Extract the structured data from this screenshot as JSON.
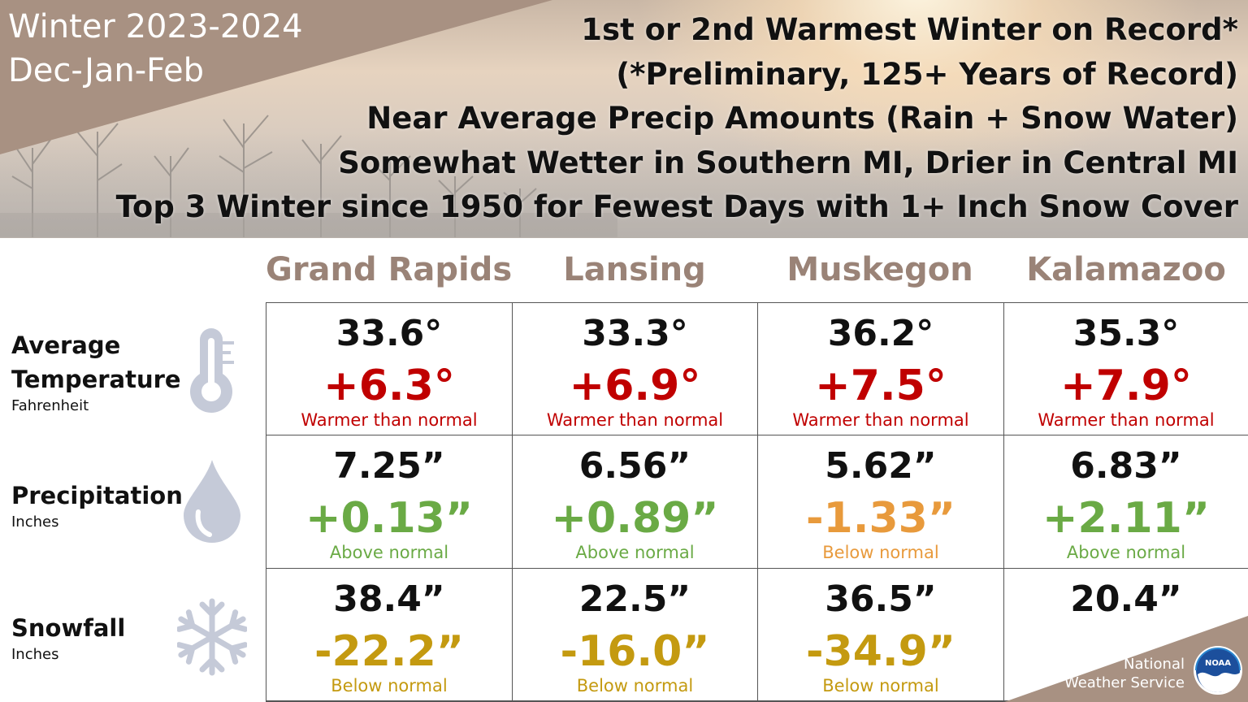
{
  "banner": {
    "season_title": "Winter 2023-2024",
    "season_months": "Dec-Jan-Feb",
    "headlines": [
      "1st or 2nd Warmest Winter on Record*",
      "(*Preliminary, 125+ Years of Record)",
      "Near Average Precip Amounts (Rain + Snow Water)",
      "Somewhat Wetter in Southern MI, Drier in Central MI",
      "Top 3 Winter since 1950 for Fewest Days with 1+ Inch Snow Cover"
    ]
  },
  "columns": [
    "Grand Rapids",
    "Lansing",
    "Muskegon",
    "Kalamazoo"
  ],
  "rows": [
    {
      "label": "Average",
      "label2": "Temperature",
      "unit": "Fahrenheit",
      "icon": "thermometer-icon",
      "cells": [
        {
          "value": "33.6°",
          "departure": "+6.3°",
          "note": "Warmer than normal",
          "color": "red"
        },
        {
          "value": "33.3°",
          "departure": "+6.9°",
          "note": "Warmer than normal",
          "color": "red"
        },
        {
          "value": "36.2°",
          "departure": "+7.5°",
          "note": "Warmer than normal",
          "color": "red"
        },
        {
          "value": "35.3°",
          "departure": "+7.9°",
          "note": "Warmer than normal",
          "color": "red"
        }
      ]
    },
    {
      "label": "Precipitation",
      "unit": "Inches",
      "icon": "raindrop-icon",
      "cells": [
        {
          "value": "7.25”",
          "departure": "+0.13”",
          "note": "Above normal",
          "color": "green"
        },
        {
          "value": "6.56”",
          "departure": "+0.89”",
          "note": "Above normal",
          "color": "green"
        },
        {
          "value": "5.62”",
          "departure": "-1.33”",
          "note": "Below normal",
          "color": "orange"
        },
        {
          "value": "6.83”",
          "departure": "+2.11”",
          "note": "Above normal",
          "color": "green"
        }
      ]
    },
    {
      "label": "Snowfall",
      "unit": "Inches",
      "icon": "snowflake-icon",
      "cells": [
        {
          "value": "38.4”",
          "departure": "-22.2”",
          "note": "Below normal",
          "color": "gold"
        },
        {
          "value": "22.5”",
          "departure": "-16.0”",
          "note": "Below normal",
          "color": "gold"
        },
        {
          "value": "36.5”",
          "departure": "-34.9”",
          "note": "Below normal",
          "color": "gold"
        },
        {
          "value": "20.4”",
          "departure": "",
          "note": "",
          "color": "gold"
        }
      ]
    }
  ],
  "colors": {
    "red": "#c00000",
    "green": "#6aaa45",
    "orange": "#e89a3c",
    "gold": "#c49a10",
    "header_brown": "#9a8377",
    "icon_gray": "#c5cad8"
  },
  "footer": {
    "org_line1": "National",
    "org_line2": "Weather Service",
    "logo_text": "NOAA"
  }
}
